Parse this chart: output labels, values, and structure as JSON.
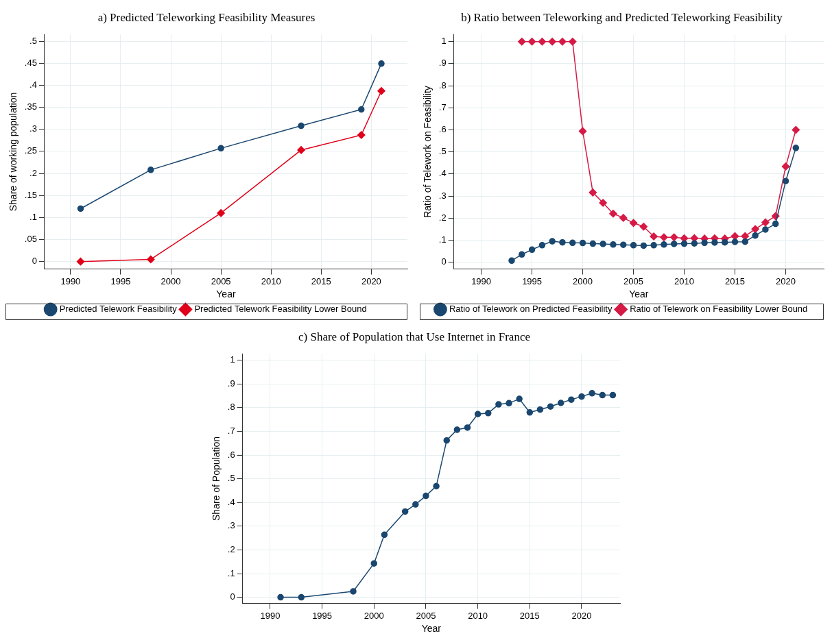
{
  "chart_data": [
    {
      "type": "line",
      "title": "a) Predicted Teleworking Feasibility Measures",
      "xlabel": "Year",
      "ylabel": "Share of working population",
      "xlim": [
        1987.4,
        2023.6
      ],
      "ylim": [
        -0.017,
        0.515
      ],
      "xticks": [
        1990,
        1995,
        2000,
        2005,
        2010,
        2015,
        2020
      ],
      "yticks": [
        {
          "value": 0,
          "label": "0"
        },
        {
          "value": 0.05,
          "label": ".05"
        },
        {
          "value": 0.1,
          "label": ".1"
        },
        {
          "value": 0.15,
          "label": ".15"
        },
        {
          "value": 0.2,
          "label": ".2"
        },
        {
          "value": 0.25,
          "label": ".25"
        },
        {
          "value": 0.3,
          "label": ".3"
        },
        {
          "value": 0.35,
          "label": ".35"
        },
        {
          "value": 0.4,
          "label": ".4"
        },
        {
          "value": 0.45,
          "label": ".45"
        },
        {
          "value": 0.5,
          "label": ".5"
        }
      ],
      "grid": true,
      "legend": "bottom",
      "series": [
        {
          "name": "Predicted Telework Feasibility",
          "color": "#1a476f",
          "marker": "circle",
          "x": [
            1991,
            1998,
            2005,
            2013,
            2019,
            2021
          ],
          "values": [
            0.12,
            0.208,
            0.257,
            0.308,
            0.345,
            0.449
          ]
        },
        {
          "name": "Predicted Telework Feasibility Lower Bound",
          "color": "#e0001a",
          "marker": "diamond",
          "x": [
            1991,
            1998,
            2005,
            2013,
            2019,
            2021
          ],
          "values": [
            0,
            0.005,
            0.11,
            0.253,
            0.287,
            0.387
          ]
        }
      ]
    },
    {
      "type": "line",
      "title": "b) Ratio between Teleworking and Predicted Teleworking Feasibility",
      "xlabel": "Year",
      "ylabel": "Ratio of Telework on Feasibility",
      "xlim": [
        1987.3,
        2023.75
      ],
      "ylim": [
        -0.031,
        1.032
      ],
      "xticks": [
        1990,
        1995,
        2000,
        2005,
        2010,
        2015,
        2020
      ],
      "yticks": [
        {
          "value": 0,
          "label": "0"
        },
        {
          "value": 0.1,
          "label": ".1"
        },
        {
          "value": 0.2,
          "label": ".2"
        },
        {
          "value": 0.3,
          "label": ".3"
        },
        {
          "value": 0.4,
          "label": ".4"
        },
        {
          "value": 0.5,
          "label": ".5"
        },
        {
          "value": 0.6,
          "label": ".6"
        },
        {
          "value": 0.7,
          "label": ".7"
        },
        {
          "value": 0.8,
          "label": ".8"
        },
        {
          "value": 0.9,
          "label": ".9"
        },
        {
          "value": 1,
          "label": "1"
        }
      ],
      "grid": true,
      "legend": "bottom",
      "series": [
        {
          "name": "Ratio of Telework on Predicted Feasibility",
          "color": "#1a476f",
          "marker": "circle",
          "x": [
            1993,
            1994,
            1995,
            1996,
            1997,
            1998,
            1999,
            2000,
            2001,
            2002,
            2003,
            2004,
            2005,
            2006,
            2007,
            2008,
            2009,
            2010,
            2011,
            2012,
            2013,
            2014,
            2015,
            2016,
            2017,
            2018,
            2019,
            2020,
            2021
          ],
          "values": [
            0.007,
            0.035,
            0.057,
            0.077,
            0.095,
            0.09,
            0.088,
            0.087,
            0.084,
            0.083,
            0.08,
            0.079,
            0.077,
            0.075,
            0.077,
            0.08,
            0.083,
            0.084,
            0.085,
            0.088,
            0.089,
            0.09,
            0.092,
            0.093,
            0.121,
            0.148,
            0.174,
            0.368,
            0.518
          ]
        },
        {
          "name": "Ratio of Telework on Feasibility Lower Bound",
          "color": "#d61a46",
          "marker": "diamond",
          "x": [
            1994,
            1995,
            1996,
            1997,
            1998,
            1999,
            2000,
            2001,
            2002,
            2003,
            2004,
            2005,
            2006,
            2007,
            2008,
            2009,
            2010,
            2011,
            2012,
            2013,
            2014,
            2015,
            2016,
            2017,
            2018,
            2019,
            2020,
            2021
          ],
          "values": [
            1,
            1,
            1,
            1,
            1,
            1,
            0.594,
            0.316,
            0.269,
            0.22,
            0.201,
            0.178,
            0.161,
            0.117,
            0.113,
            0.113,
            0.108,
            0.109,
            0.107,
            0.108,
            0.107,
            0.118,
            0.118,
            0.15,
            0.18,
            0.209,
            0.434,
            0.6
          ]
        }
      ]
    },
    {
      "type": "line",
      "title": "c) Share of Population that Use Internet in France",
      "xlabel": "Year",
      "ylabel": "Share of Population",
      "xlim": [
        1987.34,
        2023.7
      ],
      "ylim": [
        -0.026,
        1.027
      ],
      "xticks": [
        1990,
        1995,
        2000,
        2005,
        2010,
        2015,
        2020
      ],
      "yticks": [
        {
          "value": 0,
          "label": "0"
        },
        {
          "value": 0.1,
          "label": ".1"
        },
        {
          "value": 0.2,
          "label": ".2"
        },
        {
          "value": 0.3,
          "label": ".3"
        },
        {
          "value": 0.4,
          "label": ".4"
        },
        {
          "value": 0.5,
          "label": ".5"
        },
        {
          "value": 0.6,
          "label": ".6"
        },
        {
          "value": 0.7,
          "label": ".7"
        },
        {
          "value": 0.8,
          "label": ".8"
        },
        {
          "value": 0.9,
          "label": ".9"
        },
        {
          "value": 1,
          "label": "1"
        }
      ],
      "grid": true,
      "series": [
        {
          "color": "#1a476f",
          "marker": "circle",
          "x": [
            1991,
            1993,
            1998,
            2000,
            2001,
            2003,
            2004,
            2005,
            2006,
            2007,
            2008,
            2009,
            2010,
            2011,
            2012,
            2013,
            2014,
            2015,
            2016,
            2017,
            2018,
            2019,
            2020,
            2021,
            2022,
            2023
          ],
          "values": [
            0,
            0,
            0.025,
            0.143,
            0.264,
            0.362,
            0.392,
            0.428,
            0.469,
            0.662,
            0.707,
            0.716,
            0.773,
            0.777,
            0.814,
            0.819,
            0.837,
            0.78,
            0.792,
            0.805,
            0.82,
            0.834,
            0.847,
            0.861,
            0.853,
            0.853
          ]
        }
      ]
    }
  ]
}
